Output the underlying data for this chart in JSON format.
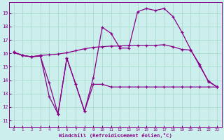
{
  "xlabel": "Windchill (Refroidissement éolien,°C)",
  "background_color": "#cceeed",
  "grid_color": "#aaddcc",
  "line_color": "#880088",
  "xlim": [
    -0.5,
    23.5
  ],
  "ylim": [
    10.5,
    19.8
  ],
  "yticks": [
    11,
    12,
    13,
    14,
    15,
    16,
    17,
    18,
    19
  ],
  "xticks": [
    0,
    1,
    2,
    3,
    4,
    5,
    6,
    7,
    8,
    9,
    10,
    11,
    12,
    13,
    14,
    15,
    16,
    17,
    18,
    19,
    20,
    21,
    22,
    23
  ],
  "line1_x": [
    0,
    1,
    2,
    3,
    4,
    5,
    6,
    7,
    8,
    9,
    10,
    11,
    12,
    13,
    14,
    15,
    16,
    17,
    18,
    19,
    20,
    21,
    22,
    23
  ],
  "line1_y": [
    16.1,
    15.85,
    15.75,
    15.8,
    13.8,
    11.5,
    15.65,
    13.7,
    11.7,
    13.7,
    13.7,
    13.5,
    13.5,
    13.5,
    13.5,
    13.5,
    13.5,
    13.5,
    13.5,
    13.5,
    13.5,
    13.5,
    13.5,
    13.5
  ],
  "line2_x": [
    0,
    1,
    2,
    3,
    4,
    5,
    6,
    7,
    8,
    9,
    10,
    11,
    12,
    13,
    14,
    15,
    16,
    17,
    18,
    19,
    20,
    21,
    22,
    23
  ],
  "line2_y": [
    16.05,
    15.85,
    15.75,
    15.85,
    15.9,
    15.95,
    16.05,
    16.2,
    16.35,
    16.45,
    16.5,
    16.55,
    16.55,
    16.6,
    16.6,
    16.6,
    16.6,
    16.65,
    16.5,
    16.3,
    16.25,
    15.2,
    13.9,
    13.5
  ],
  "line3_x": [
    0,
    1,
    2,
    3,
    4,
    5,
    6,
    7,
    8,
    9,
    10,
    11,
    12,
    13,
    14,
    15,
    16,
    17,
    18,
    19,
    20,
    21,
    22,
    23
  ],
  "line3_y": [
    16.1,
    15.85,
    15.75,
    15.85,
    12.8,
    11.5,
    15.65,
    13.7,
    11.7,
    14.2,
    17.95,
    17.5,
    16.4,
    16.4,
    19.1,
    19.35,
    19.2,
    19.35,
    18.75,
    17.6,
    16.3,
    15.1,
    13.95,
    13.5
  ]
}
